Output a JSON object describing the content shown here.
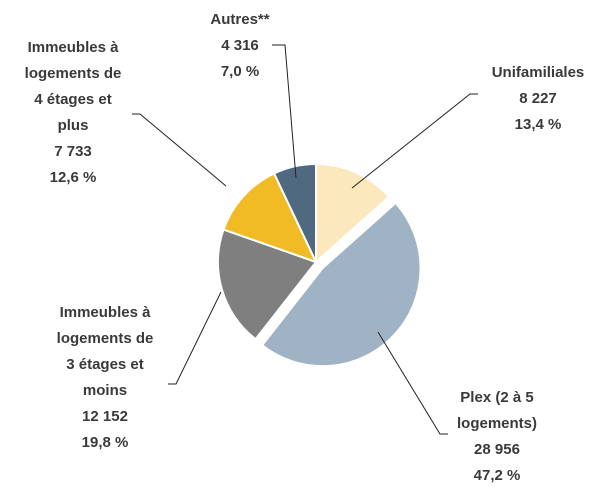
{
  "chart_data": {
    "type": "pie",
    "categories": [
      "Unifamiliales",
      "Plex (2 à 5\nlogements)",
      "Immeubles à\nlogements de\n3 étages et\nmoins",
      "Immeubles à\nlogements de\n4 étages et\nplus",
      "Autres**"
    ],
    "values": [
      8227,
      28956,
      12152,
      7733,
      4316
    ],
    "value_labels": [
      "8 227",
      "28 956",
      "12 152",
      "7 733",
      "4 316"
    ],
    "percent_labels": [
      "13,4 %",
      "47,2 %",
      "19,8 %",
      "12,6 %",
      "7,0 %"
    ],
    "colors": [
      "#fbe9bd",
      "#9fb3c4",
      "#7f7f7f",
      "#f0bb25",
      "#4f6a80"
    ]
  }
}
